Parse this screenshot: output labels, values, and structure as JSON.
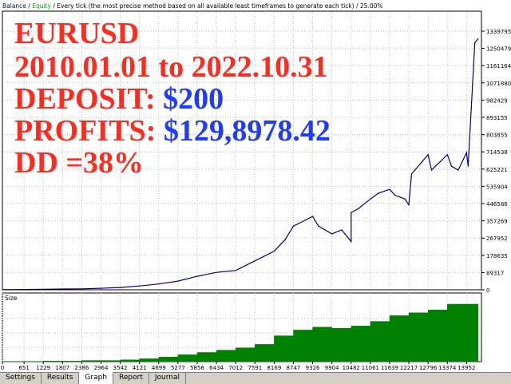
{
  "header": {
    "balance": "Balance",
    "separator": " / ",
    "equity": "Equity",
    "info": " / Every tick (the most precise method based on all available least timeframes to generate each tick) / 25.00%"
  },
  "overlay": {
    "line1": "EURUSD",
    "line2": "2010.01.01 to 2022.10.31",
    "deposit_label": "DEPOSIT: ",
    "deposit_value": "$200",
    "profits_label": "PROFITS: ",
    "profits_value": "$129,8978.42",
    "dd": "DD =38%"
  },
  "tabs": [
    "Settings",
    "Results",
    "Graph",
    "Report",
    "Journal"
  ],
  "active_tab": "Graph",
  "colors": {
    "balance": "#000080",
    "equity": "#00a000",
    "size": "#008000",
    "grid": "#c0c0c0"
  },
  "chart_data": {
    "type": "line",
    "x_ticks": [
      "0",
      "651",
      "1229",
      "1807",
      "2386",
      "2964",
      "3542",
      "4121",
      "4699",
      "5277",
      "5856",
      "6434",
      "7012",
      "7591",
      "8169",
      "8747",
      "9326",
      "9904",
      "10482",
      "11061",
      "11639",
      "12217",
      "12796",
      "13374",
      "13952"
    ],
    "y_ticks": [
      "1339795",
      "1250479",
      "1161164",
      "1071880",
      "982429",
      "893155",
      "803855",
      "714538",
      "625221",
      "535904",
      "446586",
      "357269",
      "267952",
      "178635",
      "89317",
      "0"
    ],
    "ylim": [
      0,
      1339795
    ],
    "xlim": [
      0,
      14400
    ],
    "series": [
      {
        "name": "Balance",
        "x": [
          0,
          651,
          1229,
          1807,
          2386,
          2964,
          3542,
          4121,
          4699,
          5277,
          5856,
          6434,
          7012,
          7591,
          8169,
          8500,
          8747,
          9100,
          9326,
          9500,
          9904,
          10200,
          10482,
          10482,
          10700,
          11061,
          11300,
          11639,
          11800,
          12100,
          12217,
          12300,
          12796,
          12900,
          13374,
          13500,
          13700,
          13952,
          14000,
          14200,
          14300
        ],
        "y": [
          500,
          1500,
          3000,
          4000,
          5000,
          8000,
          12000,
          20000,
          30000,
          45000,
          70000,
          90000,
          100000,
          150000,
          200000,
          260000,
          330000,
          360000,
          380000,
          330000,
          290000,
          310000,
          250000,
          400000,
          420000,
          470000,
          500000,
          520000,
          490000,
          470000,
          440000,
          600000,
          700000,
          620000,
          700000,
          640000,
          620000,
          710000,
          640000,
          1280000,
          1300000
        ]
      }
    ],
    "size_panel": {
      "label": "Size",
      "x": [
        0,
        1229,
        2386,
        3542,
        4121,
        4699,
        5277,
        5856,
        6434,
        7012,
        7591,
        8169,
        8747,
        9326,
        9904,
        10482,
        11061,
        11639,
        12217,
        12796,
        13374,
        13952,
        14300
      ],
      "y": [
        0,
        0.01,
        0.02,
        0.03,
        0.05,
        0.08,
        0.12,
        0.16,
        0.2,
        0.24,
        0.3,
        0.45,
        0.55,
        0.6,
        0.58,
        0.62,
        0.7,
        0.8,
        0.85,
        0.9,
        1,
        1,
        1
      ]
    }
  }
}
